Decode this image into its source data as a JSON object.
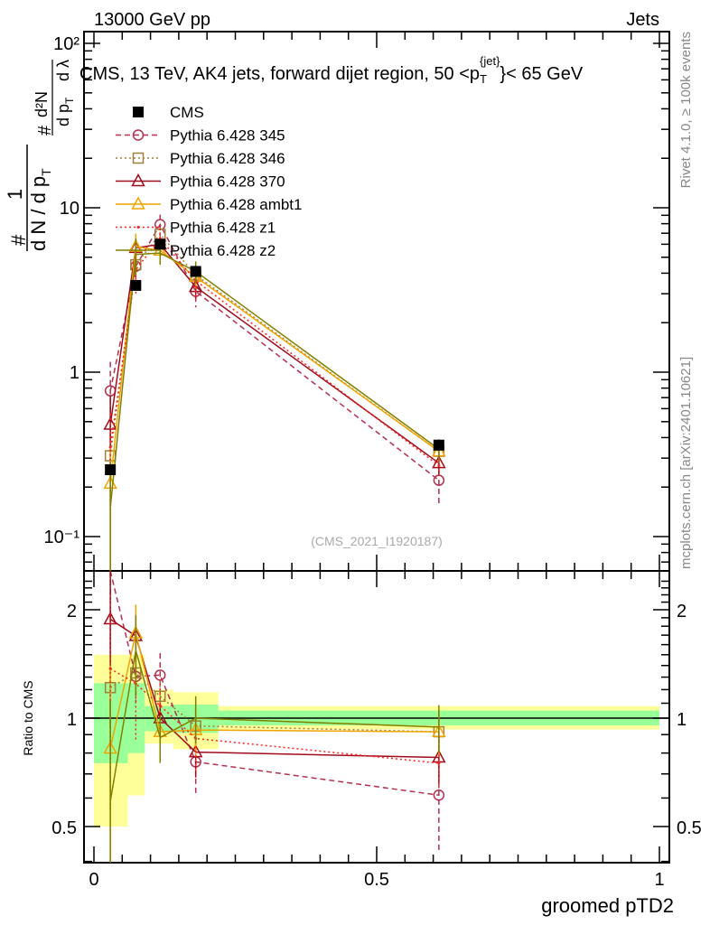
{
  "chart_data": {
    "type": "line",
    "header_left": "13000 GeV pp",
    "header_right": "Jets",
    "title": "CMS, 13 TeV, AK4 jets, forward dijet region, 50 <p_T^{jet}< 65 GeV",
    "title_pre": "CMS, 13 TeV, AK4 jets, forward dijet region, 50 <p",
    "title_sup": "{jet}",
    "title_sub": "T",
    "title_post": "}< 65 GeV",
    "ylabel": "1/(dN/dp_T) d²N/(dp_T dλ)",
    "ylabel_parts": {
      "one": "1",
      "den": "d N / d p",
      "den_sub": "T",
      "num2": "d²N",
      "den2": "d p",
      "den2_sub": "T",
      "dl": "d λ",
      "hash": "#"
    },
    "xlabel": "groomed pTD2",
    "ratio_ylabel": "Ratio to CMS",
    "right_label_1": "Rivet 4.1.0, ≥ 100k events",
    "right_label_2": "mcplots.cern.ch [arXiv:2401.10621]",
    "analysis_id": "(CMS_2021_I1920187)",
    "xlim": [
      0,
      1
    ],
    "ylim": [
      0.06,
      120
    ],
    "ratio_ylim": [
      0.4,
      2.55
    ],
    "yscale": "log",
    "legend_placement": "top-left",
    "x_ticks": [
      {
        "v": 0,
        "label": "0"
      },
      {
        "v": 0.5,
        "label": "0.5"
      },
      {
        "v": 1,
        "label": "1"
      }
    ],
    "y_ticks": [
      {
        "v": 100,
        "label": "10²"
      },
      {
        "v": 10,
        "label": "10"
      },
      {
        "v": 1,
        "label": "1"
      },
      {
        "v": 0.1,
        "label": "10⁻¹"
      }
    ],
    "ratio_ticks": [
      {
        "v": 2,
        "label": "2"
      },
      {
        "v": 1,
        "label": "1"
      },
      {
        "v": 0.5,
        "label": "0.5"
      }
    ],
    "bins": [
      [
        0,
        0.06
      ],
      [
        0.06,
        0.09
      ],
      [
        0.09,
        0.14
      ],
      [
        0.14,
        0.22
      ],
      [
        0.22,
        1.0
      ]
    ],
    "x": [
      0.029,
      0.074,
      0.117,
      0.18,
      0.61
    ],
    "data": {
      "name": "CMS",
      "values": [
        0.255,
        3.37,
        6.0,
        4.1,
        0.36
      ],
      "color": "#000000"
    },
    "band_yellow": [
      [
        0.5,
        1.5
      ],
      [
        0.61,
        1.5
      ],
      [
        0.85,
        1.2
      ],
      [
        0.82,
        1.18
      ],
      [
        0.93,
        1.08
      ]
    ],
    "band_green": [
      [
        0.75,
        1.25
      ],
      [
        0.8,
        1.25
      ],
      [
        0.92,
        1.08
      ],
      [
        0.91,
        1.09
      ],
      [
        0.955,
        1.05
      ]
    ],
    "series": [
      {
        "name": "Pythia 6.428 345",
        "values": [
          0.77,
          4.4,
          7.9,
          3.1,
          0.22
        ],
        "rel_err": [
          0.5,
          0.15,
          0.15,
          0.2,
          0.3
        ],
        "color": "#b43050",
        "dash": "6,4",
        "marker": "circle"
      },
      {
        "name": "Pythia 6.428 346",
        "values": [
          0.31,
          4.5,
          6.9,
          3.9,
          0.33
        ],
        "rel_err": [
          0.6,
          0.15,
          0.1,
          0.15,
          0.15
        ],
        "color": "#a0803c",
        "dash": "2,3",
        "marker": "square"
      },
      {
        "name": "Pythia 6.428 370",
        "values": [
          0.48,
          5.7,
          6.0,
          3.3,
          0.28
        ],
        "rel_err": [
          0.5,
          0.15,
          0.1,
          0.15,
          0.15
        ],
        "color": "#a00c1c",
        "dash": "",
        "marker": "triangle"
      },
      {
        "name": "Pythia 6.428 ambt1",
        "values": [
          0.21,
          5.8,
          5.5,
          3.8,
          0.33
        ],
        "rel_err": [
          0.7,
          0.2,
          0.1,
          0.15,
          0.15
        ],
        "color": "#f0a400",
        "dash": "",
        "marker": "triangle"
      },
      {
        "name": "Pythia 6.428 z1",
        "values": [
          0.35,
          4.2,
          6.5,
          3.6,
          0.27
        ],
        "rel_err": [
          0.6,
          0.3,
          0.15,
          0.2,
          0.15
        ],
        "color": "#ff2020",
        "dash": "2,3",
        "marker": "dot"
      },
      {
        "name": "Pythia 6.428 z2",
        "values": [
          0.15,
          5.2,
          5.3,
          4.1,
          0.34
        ],
        "rel_err": [
          0.9,
          0.25,
          0.15,
          0.15,
          0.15
        ],
        "color": "#808000",
        "dash": "",
        "marker": "none"
      }
    ]
  }
}
